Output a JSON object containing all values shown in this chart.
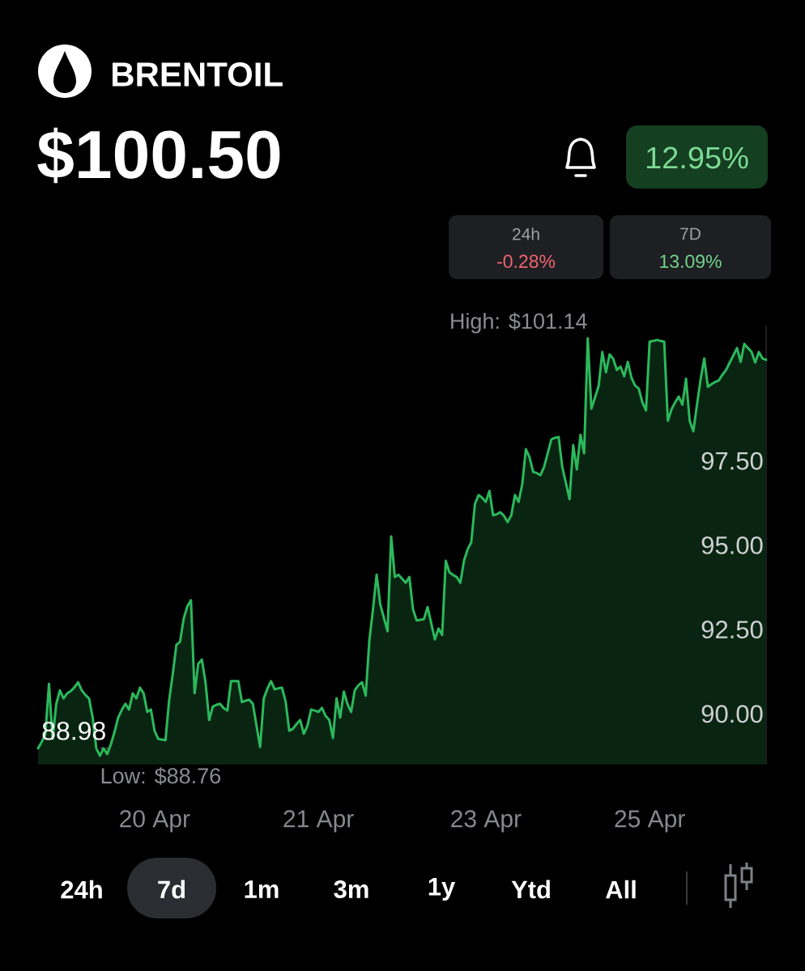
{
  "chart_data": {
    "type": "area",
    "title": "BRENTOIL",
    "subtitle": "$100.50",
    "categories": [
      null,
      null,
      null,
      null,
      null,
      null,
      null,
      null,
      null,
      null,
      null,
      null,
      null,
      null,
      null,
      null,
      null,
      null,
      null,
      null,
      null,
      null,
      null,
      null,
      null,
      null,
      null,
      null,
      null,
      null,
      null,
      null,
      "20 Apr",
      null,
      null,
      null,
      null,
      null,
      null,
      null,
      null,
      null,
      null,
      null,
      null,
      null,
      null,
      null,
      null,
      null,
      null,
      null,
      null,
      null,
      null,
      null,
      null,
      null,
      null,
      null,
      null,
      null,
      null,
      null,
      null,
      null,
      null,
      null,
      null,
      null,
      null,
      null,
      null,
      null,
      null,
      null,
      null,
      "21 Apr",
      null,
      null,
      null,
      null,
      null,
      null,
      null,
      null,
      null,
      null,
      null,
      null,
      null,
      null,
      null,
      null,
      null,
      null,
      null,
      null,
      null,
      null,
      null,
      null,
      null,
      null,
      null,
      null,
      null,
      null,
      null,
      null,
      null,
      null,
      null,
      null,
      null,
      null,
      null,
      null,
      null,
      null,
      null,
      null,
      null,
      "23 Apr",
      null,
      null,
      null,
      null,
      null,
      null,
      null,
      null,
      null,
      null,
      null,
      null,
      null,
      null,
      null,
      null,
      null,
      null,
      null,
      null,
      null,
      null,
      null,
      null,
      null,
      null,
      null,
      null,
      null,
      null,
      null,
      null,
      null,
      null,
      null,
      null,
      null,
      null,
      null,
      null,
      null,
      null,
      null,
      null,
      "25 Apr",
      null,
      null,
      null,
      null,
      null,
      null,
      null,
      null,
      null,
      null,
      null,
      null,
      null,
      null,
      null,
      null,
      null,
      null,
      null,
      null,
      null,
      null,
      null,
      null,
      null,
      null,
      null,
      null,
      null,
      null,
      null,
      null
    ],
    "series": [
      {
        "color": "#2cb85c",
        "values": [
          88.98,
          89.17,
          89.4,
          90.89,
          89.26,
          90.3,
          90.7,
          90.46,
          90.61,
          90.68,
          90.79,
          90.94,
          90.7,
          90.56,
          90.46,
          89.89,
          88.98,
          88.76,
          88.98,
          88.81,
          89.1,
          89.46,
          89.89,
          90.12,
          90.3,
          90.13,
          90.61,
          90.46,
          90.78,
          90.61,
          90.06,
          90.13,
          89.5,
          89.26,
          89.24,
          89.22,
          90.4,
          91.18,
          92.05,
          92.14,
          92.82,
          93.19,
          93.37,
          90.61,
          91.49,
          91.61,
          90.94,
          89.82,
          90.22,
          90.27,
          90.3,
          90.17,
          90.1,
          90.97,
          90.97,
          90.97,
          90.35,
          90.39,
          90.42,
          90.3,
          89.66,
          89.02,
          90.46,
          90.75,
          90.97,
          90.73,
          90.76,
          90.78,
          90.37,
          89.5,
          89.56,
          89.7,
          89.82,
          89.41,
          89.65,
          90.13,
          90.1,
          90.06,
          90.18,
          89.94,
          89.82,
          89.29,
          90.46,
          89.89,
          90.66,
          90.29,
          90.06,
          90.7,
          90.85,
          90.94,
          90.54,
          92.17,
          93.1,
          94.13,
          93.25,
          92.85,
          92.45,
          95.26,
          94.06,
          94.13,
          94.01,
          93.89,
          94.06,
          93.1,
          92.77,
          92.79,
          92.81,
          93.17,
          92.69,
          92.21,
          92.53,
          92.34,
          94.54,
          94.2,
          94.12,
          94.06,
          93.89,
          94.54,
          94.88,
          95.09,
          96.22,
          96.49,
          96.41,
          96.29,
          96.61,
          95.89,
          95.92,
          95.98,
          95.87,
          95.69,
          95.89,
          96.49,
          96.29,
          96.81,
          97.85,
          97.61,
          97.18,
          97.14,
          97.08,
          97.32,
          97.73,
          98.14,
          98.19,
          98.21,
          97.32,
          96.85,
          96.37,
          97.97,
          97.25,
          98.28,
          97.73,
          101.14,
          99.05,
          99.39,
          99.73,
          100.73,
          100.13,
          100.66,
          100.53,
          100.2,
          100.3,
          100.01,
          100.44,
          99.97,
          99.74,
          99.65,
          99.24,
          99.0,
          101.04,
          101.06,
          101.09,
          101.06,
          101.04,
          98.69,
          99.03,
          99.24,
          99.41,
          99.17,
          99.94,
          98.69,
          98.38,
          99.17,
          99.92,
          100.54,
          99.7,
          99.78,
          99.84,
          99.89,
          100.06,
          100.2,
          100.42,
          100.63,
          100.85,
          100.44,
          100.97,
          100.85,
          100.73,
          100.42,
          100.73,
          100.54,
          100.5
        ]
      }
    ],
    "ylim": [
      88.5,
      101.5
    ],
    "yticks": [
      {
        "value": 90,
        "label": "90.00"
      },
      {
        "value": 92.5,
        "label": "92.50"
      },
      {
        "value": 95,
        "label": "95.00"
      },
      {
        "value": 97.5,
        "label": "97.50"
      }
    ],
    "ref_lines": [
      {
        "axis": "y",
        "value": 88.98,
        "label": "88.98",
        "color": "#5a5c60",
        "line_style": "dotted"
      }
    ],
    "annotations": [
      "High: $101.14",
      "Low: $88.76",
      "12.95%",
      "24h",
      "-0.28%",
      "7D",
      "13.09%",
      "24h",
      "7d",
      "1m",
      "3m",
      "1y",
      "Ytd",
      "All"
    ]
  }
}
